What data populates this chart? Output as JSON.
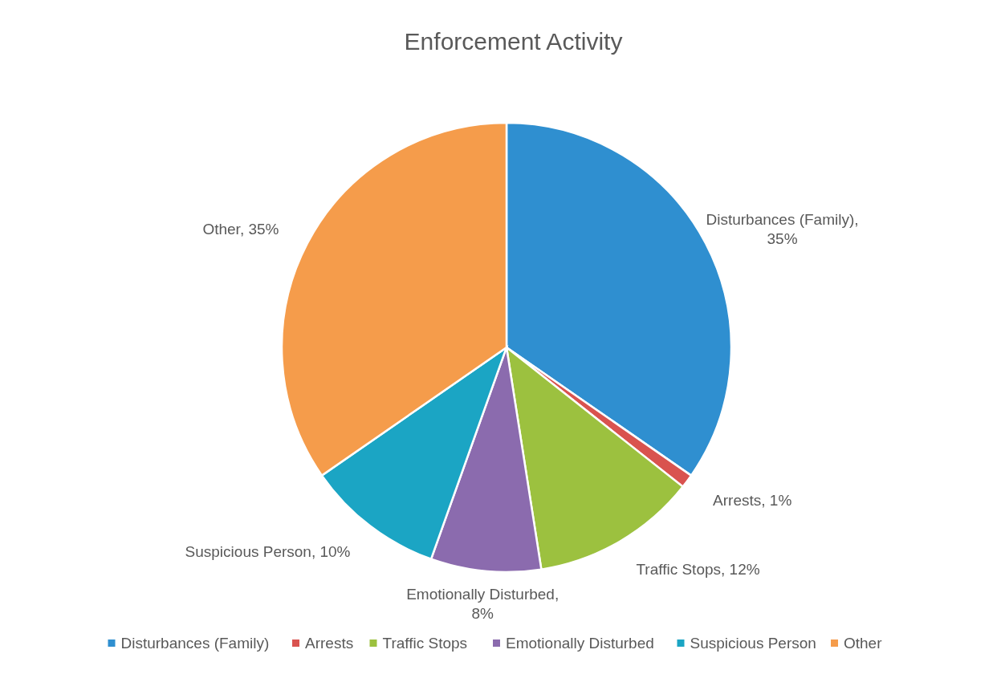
{
  "chart_data": {
    "type": "pie",
    "title": "Enforcement Activity",
    "categories": [
      "Disturbances (Family)",
      "Arrests",
      "Traffic Stops",
      "Emotionally Disturbed",
      "Suspicious Person",
      "Other"
    ],
    "values": [
      35,
      1,
      12,
      8,
      10,
      35
    ],
    "value_labels": [
      "Disturbances (Family), 35%",
      "Arrests, 1%",
      "Traffic Stops, 12%",
      "Emotionally Disturbed, 8%",
      "Suspicious Person, 10%",
      "Other, 35%"
    ],
    "colors": [
      "#2f8fd0",
      "#d9534f",
      "#9cc13f",
      "#8b6bae",
      "#1ba5c4",
      "#f59c4b"
    ],
    "legend": "bottom"
  }
}
